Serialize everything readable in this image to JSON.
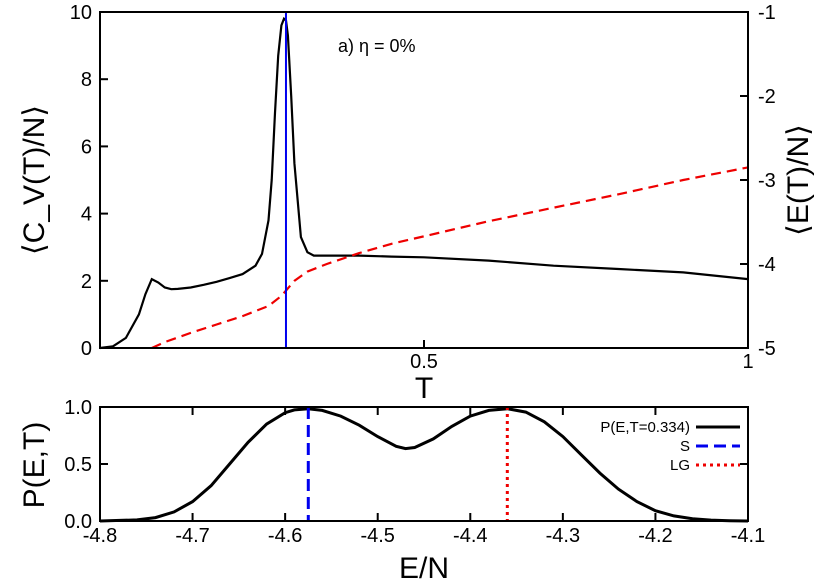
{
  "chart_data": [
    {
      "type": "line",
      "annotation": "a) η = 0%",
      "xlabel": "T",
      "ylabel_left": "⟨C_V(T)/N⟩",
      "ylabel_right": "⟨E(T)/N⟩",
      "xlim": [
        0,
        1
      ],
      "ylim_left": [
        0,
        10
      ],
      "ylim_right": [
        -5,
        -1
      ],
      "x_ticks": [
        0.5,
        1
      ],
      "x_tick_labels": [
        "0.5",
        "1"
      ],
      "y_ticks_left": [
        0,
        2,
        4,
        6,
        8,
        10
      ],
      "y_tick_labels_left": [
        "0",
        "2",
        "4",
        "6",
        "8",
        "10"
      ],
      "y_ticks_right": [
        -5,
        -4,
        -3,
        -2,
        -1
      ],
      "y_tick_labels_right": [
        "-5",
        "-4",
        "-3",
        "-2",
        "-1"
      ],
      "vertical_line": {
        "x": 0.287,
        "color": "#0000ee"
      },
      "series": [
        {
          "axis": "left",
          "color": "#000000",
          "style": "solid",
          "x": [
            0.0,
            0.02,
            0.04,
            0.06,
            0.07,
            0.08,
            0.09,
            0.1,
            0.11,
            0.12,
            0.14,
            0.16,
            0.18,
            0.2,
            0.22,
            0.24,
            0.25,
            0.26,
            0.265,
            0.27,
            0.275,
            0.28,
            0.284,
            0.287,
            0.29,
            0.295,
            0.3,
            0.31,
            0.32,
            0.33,
            0.35,
            0.4,
            0.45,
            0.5,
            0.6,
            0.7,
            0.8,
            0.9,
            1.0
          ],
          "y": [
            0.0,
            0.05,
            0.3,
            1.0,
            1.6,
            2.05,
            1.95,
            1.8,
            1.75,
            1.76,
            1.8,
            1.88,
            1.97,
            2.08,
            2.2,
            2.45,
            2.8,
            3.8,
            5.0,
            7.0,
            8.7,
            9.6,
            9.8,
            9.75,
            9.3,
            7.5,
            5.5,
            3.3,
            2.85,
            2.75,
            2.75,
            2.75,
            2.72,
            2.7,
            2.6,
            2.45,
            2.35,
            2.25,
            2.05
          ]
        },
        {
          "axis": "right",
          "color": "#ee0000",
          "style": "dashed",
          "x": [
            0.08,
            0.1,
            0.14,
            0.18,
            0.22,
            0.26,
            0.28,
            0.3,
            0.32,
            0.35,
            0.4,
            0.45,
            0.5,
            0.6,
            0.7,
            0.8,
            0.9,
            1.0
          ],
          "y": [
            -5.0,
            -4.93,
            -4.82,
            -4.72,
            -4.62,
            -4.5,
            -4.38,
            -4.2,
            -4.09,
            -4.0,
            -3.87,
            -3.76,
            -3.67,
            -3.49,
            -3.33,
            -3.17,
            -3.0,
            -2.85
          ]
        }
      ]
    },
    {
      "type": "line",
      "xlabel": "E/N",
      "ylabel": "P(E,T)",
      "xlim": [
        -4.8,
        -4.1
      ],
      "ylim": [
        0,
        1
      ],
      "x_ticks": [
        -4.8,
        -4.7,
        -4.6,
        -4.5,
        -4.4,
        -4.3,
        -4.2,
        -4.1
      ],
      "x_tick_labels": [
        "-4.8",
        "-4.7",
        "-4.6",
        "-4.5",
        "-4.4",
        "-4.3",
        "-4.2",
        "-4.1"
      ],
      "y_ticks": [
        0,
        0.5,
        1
      ],
      "y_tick_labels": [
        "0.0",
        "0.5",
        "1.0"
      ],
      "legend_position": "right",
      "series": [
        {
          "name": "P(E,T=0.334)",
          "color": "#000000",
          "style": "solid",
          "x": [
            -4.8,
            -4.76,
            -4.74,
            -4.72,
            -4.7,
            -4.68,
            -4.66,
            -4.64,
            -4.62,
            -4.6,
            -4.59,
            -4.575,
            -4.56,
            -4.54,
            -4.52,
            -4.5,
            -4.48,
            -4.47,
            -4.46,
            -4.44,
            -4.42,
            -4.4,
            -4.38,
            -4.36,
            -4.34,
            -4.32,
            -4.3,
            -4.28,
            -4.26,
            -4.24,
            -4.22,
            -4.2,
            -4.18,
            -4.16,
            -4.14,
            -4.12,
            -4.1
          ],
          "y": [
            0.0,
            0.01,
            0.03,
            0.08,
            0.17,
            0.31,
            0.5,
            0.69,
            0.85,
            0.95,
            0.975,
            0.985,
            0.97,
            0.92,
            0.84,
            0.74,
            0.655,
            0.635,
            0.645,
            0.72,
            0.83,
            0.92,
            0.97,
            0.985,
            0.955,
            0.87,
            0.74,
            0.58,
            0.42,
            0.28,
            0.17,
            0.09,
            0.045,
            0.02,
            0.008,
            0.003,
            0.0
          ]
        },
        {
          "name": "S",
          "color": "#0000ee",
          "style": "dashed",
          "vertical_x": -4.575
        },
        {
          "name": "LG",
          "color": "#ee0000",
          "style": "dotted",
          "vertical_x": -4.36
        }
      ]
    }
  ]
}
